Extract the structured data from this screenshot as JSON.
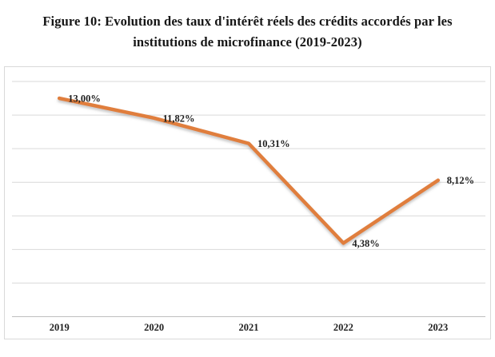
{
  "figure": {
    "title_lines": [
      "Figure 10: Evolution des taux d'intérêt réels des crédits accordés par les",
      "institutions de microfinance (2019-2023)"
    ]
  },
  "chart_data": {
    "type": "line",
    "title": "Figure 10: Evolution des taux d'intérêt réels des crédits accordés par les institutions de microfinance (2019-2023)",
    "categories": [
      "2019",
      "2020",
      "2021",
      "2022",
      "2023"
    ],
    "series": [
      {
        "values": [
          13.0,
          11.82,
          10.31,
          4.38,
          8.12
        ],
        "labels": [
          "13,00%",
          "11,82%",
          "10,31%",
          "4,38%",
          "8,12%"
        ],
        "color": "#E07E3C"
      }
    ],
    "ylim": [
      0,
      14
    ],
    "gridline_step": 2,
    "grid": true,
    "legend": "none",
    "label_position": "right",
    "gridline_color": "#D9D9D9",
    "axis_color": "#BFBFBF",
    "label_color": "#1F1F1F",
    "tick_label_color": "#1F1F1F"
  }
}
